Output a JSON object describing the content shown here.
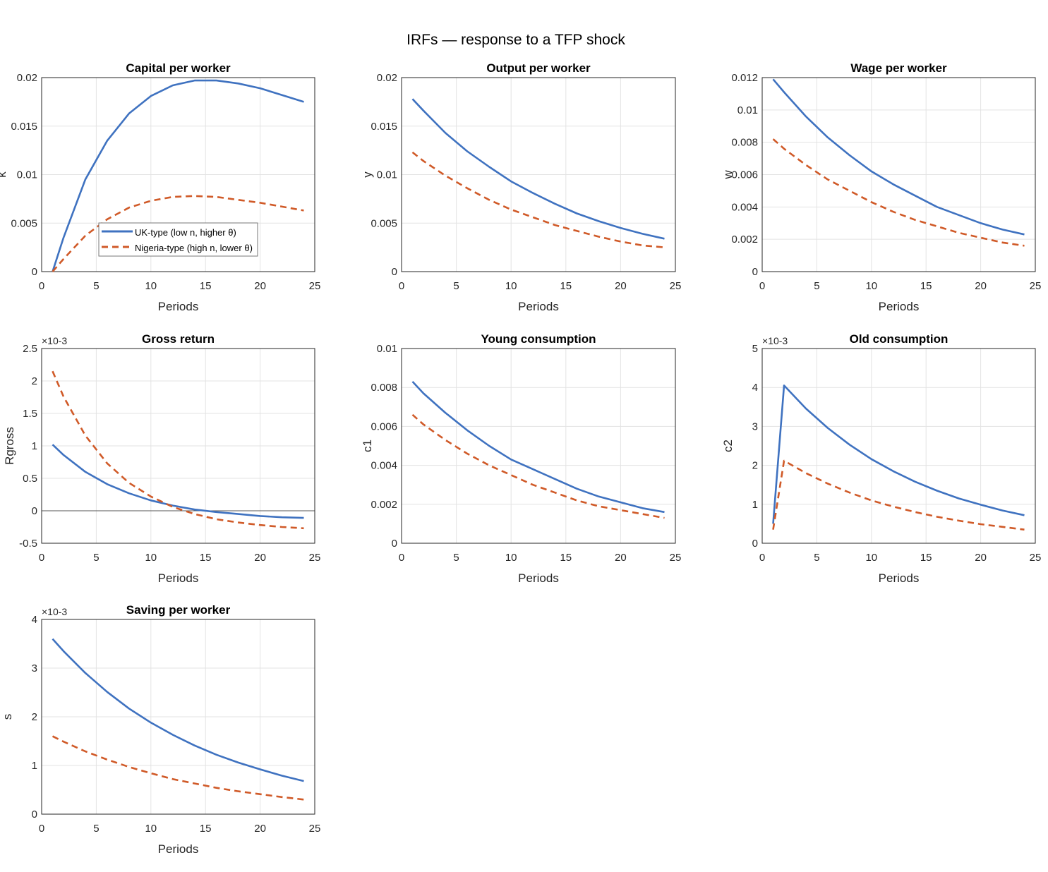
{
  "figure_title": "IRFs — response to a TFP shock",
  "legend": [
    "UK-type (low n, higher θ)",
    "Nigeria-type (high n, lower θ)"
  ],
  "colors": {
    "uk": "#3f72c0",
    "nigeria": "#d05a28"
  },
  "chart_data": [
    {
      "type": "line",
      "title": "Capital per worker",
      "xlabel": "Periods",
      "ylabel": "k",
      "xlim": [
        0,
        25
      ],
      "ylim": [
        0,
        0.02
      ],
      "grid": true,
      "legend_position": "bottom-center",
      "xticks": [
        "0",
        "5",
        "10",
        "15",
        "20",
        "25"
      ],
      "yticks": [
        "0",
        "0.005",
        "0.01",
        "0.015",
        "0.02"
      ],
      "exponent": "",
      "x": [
        1,
        2,
        4,
        6,
        8,
        10,
        12,
        14,
        16,
        18,
        20,
        22,
        24
      ],
      "series": [
        {
          "name": "UK-type (low n, higher θ)",
          "values": [
            0,
            0.0035,
            0.0095,
            0.0135,
            0.0163,
            0.0181,
            0.0192,
            0.0197,
            0.0197,
            0.0194,
            0.0189,
            0.0182,
            0.0175
          ]
        },
        {
          "name": "Nigeria-type (high n, lower θ)",
          "values": [
            0,
            0.0013,
            0.0037,
            0.0054,
            0.0066,
            0.0073,
            0.0077,
            0.0078,
            0.0077,
            0.0074,
            0.0071,
            0.0067,
            0.0063
          ]
        }
      ]
    },
    {
      "type": "line",
      "title": "Output per worker",
      "xlabel": "Periods",
      "ylabel": "y",
      "xlim": [
        0,
        25
      ],
      "ylim": [
        0,
        0.02
      ],
      "grid": true,
      "xticks": [
        "0",
        "5",
        "10",
        "15",
        "20",
        "25"
      ],
      "yticks": [
        "0",
        "0.005",
        "0.01",
        "0.015",
        "0.02"
      ],
      "exponent": "",
      "x": [
        1,
        2,
        4,
        6,
        8,
        10,
        12,
        14,
        16,
        18,
        20,
        22,
        24
      ],
      "series": [
        {
          "name": "UK-type (low n, higher θ)",
          "values": [
            0.0178,
            0.0166,
            0.0143,
            0.0124,
            0.0108,
            0.0093,
            0.0081,
            0.007,
            0.006,
            0.0052,
            0.0045,
            0.0039,
            0.0034
          ]
        },
        {
          "name": "Nigeria-type (high n, lower θ)",
          "values": [
            0.0123,
            0.0114,
            0.0099,
            0.0086,
            0.0074,
            0.0064,
            0.0056,
            0.0048,
            0.0042,
            0.0036,
            0.0031,
            0.0027,
            0.0025
          ]
        }
      ]
    },
    {
      "type": "line",
      "title": "Wage per worker",
      "xlabel": "Periods",
      "ylabel": "w",
      "xlim": [
        0,
        25
      ],
      "ylim": [
        0,
        0.012
      ],
      "grid": true,
      "xticks": [
        "0",
        "5",
        "10",
        "15",
        "20",
        "25"
      ],
      "yticks": [
        "0",
        "0.002",
        "0.004",
        "0.006",
        "0.008",
        "0.01",
        "0.012"
      ],
      "exponent": "",
      "x": [
        1,
        2,
        4,
        6,
        8,
        10,
        12,
        14,
        16,
        18,
        20,
        22,
        24
      ],
      "series": [
        {
          "name": "UK-type (low n, higher θ)",
          "values": [
            0.0119,
            0.0111,
            0.0096,
            0.0083,
            0.0072,
            0.0062,
            0.0054,
            0.0047,
            0.004,
            0.0035,
            0.003,
            0.0026,
            0.0023
          ]
        },
        {
          "name": "Nigeria-type (high n, lower θ)",
          "values": [
            0.0082,
            0.0076,
            0.0066,
            0.0057,
            0.005,
            0.0043,
            0.0037,
            0.0032,
            0.0028,
            0.0024,
            0.0021,
            0.0018,
            0.0016
          ]
        }
      ]
    },
    {
      "type": "line",
      "title": "Gross return",
      "xlabel": "Periods",
      "ylabel": "Rgross",
      "xlim": [
        0,
        25
      ],
      "ylim": [
        -0.5,
        2.5
      ],
      "grid": true,
      "xticks": [
        "0",
        "5",
        "10",
        "15",
        "20",
        "25"
      ],
      "yticks": [
        "-0.5",
        "0",
        "0.5",
        "1",
        "1.5",
        "2",
        "2.5"
      ],
      "exponent": "×10-3",
      "x": [
        1,
        2,
        4,
        6,
        8,
        10,
        12,
        14,
        16,
        18,
        20,
        22,
        24
      ],
      "series": [
        {
          "name": "UK-type (low n, higher θ)",
          "values": [
            1.02,
            0.86,
            0.6,
            0.41,
            0.27,
            0.16,
            0.08,
            0.02,
            -0.02,
            -0.05,
            -0.08,
            -0.1,
            -0.11
          ]
        },
        {
          "name": "Nigeria-type (high n, lower θ)",
          "values": [
            2.15,
            1.76,
            1.16,
            0.73,
            0.43,
            0.22,
            0.06,
            -0.05,
            -0.13,
            -0.18,
            -0.22,
            -0.25,
            -0.27
          ]
        }
      ]
    },
    {
      "type": "line",
      "title": "Young consumption",
      "xlabel": "Periods",
      "ylabel": "c1",
      "xlim": [
        0,
        25
      ],
      "ylim": [
        0,
        0.01
      ],
      "grid": true,
      "xticks": [
        "0",
        "5",
        "10",
        "15",
        "20",
        "25"
      ],
      "yticks": [
        "0",
        "0.002",
        "0.004",
        "0.006",
        "0.008",
        "0.01"
      ],
      "exponent": "",
      "x": [
        1,
        2,
        4,
        6,
        8,
        10,
        12,
        14,
        16,
        18,
        20,
        22,
        24
      ],
      "series": [
        {
          "name": "UK-type (low n, higher θ)",
          "values": [
            0.0083,
            0.0077,
            0.0067,
            0.0058,
            0.005,
            0.0043,
            0.0038,
            0.0033,
            0.0028,
            0.0024,
            0.0021,
            0.0018,
            0.0016
          ]
        },
        {
          "name": "Nigeria-type (high n, lower θ)",
          "values": [
            0.0066,
            0.0061,
            0.0053,
            0.0046,
            0.004,
            0.0035,
            0.003,
            0.0026,
            0.0022,
            0.0019,
            0.0017,
            0.0015,
            0.0013
          ]
        }
      ]
    },
    {
      "type": "line",
      "title": "Old consumption",
      "xlabel": "Periods",
      "ylabel": "c2",
      "xlim": [
        0,
        25
      ],
      "ylim": [
        0,
        5
      ],
      "grid": true,
      "xticks": [
        "0",
        "5",
        "10",
        "15",
        "20",
        "25"
      ],
      "yticks": [
        "0",
        "1",
        "2",
        "3",
        "4",
        "5"
      ],
      "exponent": "×10-3",
      "x": [
        1,
        2,
        4,
        6,
        8,
        10,
        12,
        14,
        16,
        18,
        20,
        22,
        24
      ],
      "series": [
        {
          "name": "UK-type (low n, higher θ)",
          "values": [
            0.5,
            4.05,
            3.46,
            2.96,
            2.53,
            2.16,
            1.85,
            1.58,
            1.35,
            1.15,
            0.99,
            0.84,
            0.72
          ]
        },
        {
          "name": "Nigeria-type (high n, lower θ)",
          "values": [
            0.35,
            2.12,
            1.8,
            1.53,
            1.3,
            1.1,
            0.94,
            0.8,
            0.68,
            0.58,
            0.49,
            0.42,
            0.35
          ]
        }
      ]
    },
    {
      "type": "line",
      "title": "Saving per worker",
      "xlabel": "Periods",
      "ylabel": "s",
      "xlim": [
        0,
        25
      ],
      "ylim": [
        0,
        4
      ],
      "grid": true,
      "xticks": [
        "0",
        "5",
        "10",
        "15",
        "20",
        "25"
      ],
      "yticks": [
        "0",
        "1",
        "2",
        "3",
        "4"
      ],
      "exponent": "×10-3",
      "x": [
        1,
        2,
        4,
        6,
        8,
        10,
        12,
        14,
        16,
        18,
        20,
        22,
        24
      ],
      "series": [
        {
          "name": "UK-type (low n, higher θ)",
          "values": [
            3.6,
            3.35,
            2.9,
            2.51,
            2.17,
            1.88,
            1.63,
            1.41,
            1.22,
            1.06,
            0.92,
            0.79,
            0.68
          ]
        },
        {
          "name": "Nigeria-type (high n, lower θ)",
          "values": [
            1.6,
            1.49,
            1.29,
            1.12,
            0.97,
            0.84,
            0.72,
            0.63,
            0.54,
            0.47,
            0.41,
            0.35,
            0.3
          ]
        }
      ]
    }
  ]
}
